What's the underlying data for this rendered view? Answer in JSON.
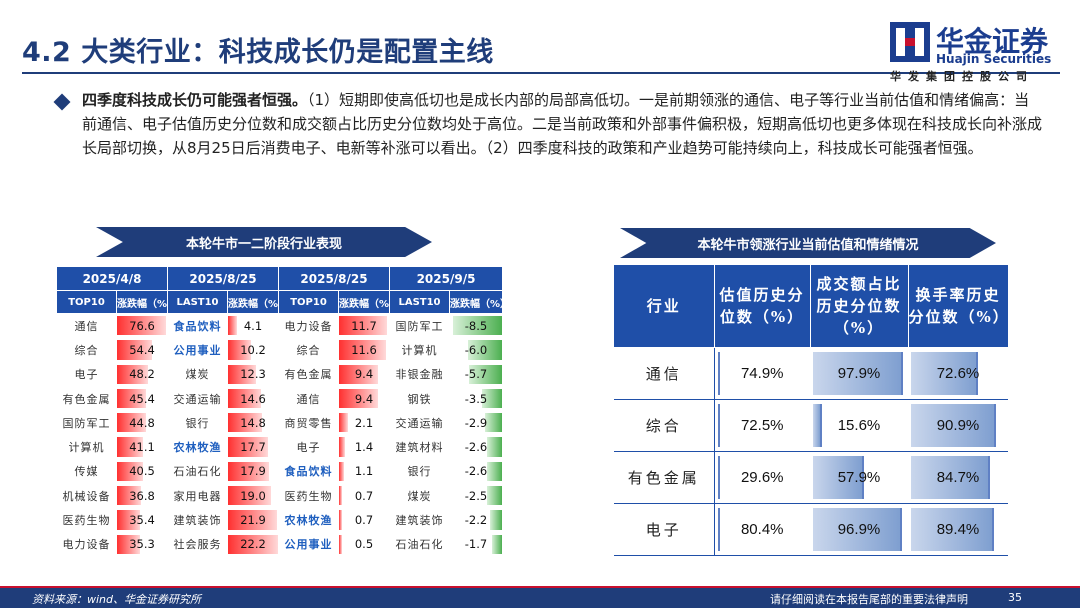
{
  "header": {
    "title": "4.2 大类行业：科技成长仍是配置主线",
    "logo_cn": "华金证券",
    "logo_en": "Huajin Securities",
    "logo_sub": "华发集团控股公司"
  },
  "body": {
    "lead": "四季度科技成长仍可能强者恒强。",
    "text": "（1）短期即使高低切也是成长内部的局部高低切。一是前期领涨的通信、电子等行业当前估值和情绪偏高：当前通信、电子估值历史分位数和成交额占比历史分位数均处于高位。二是当前政策和外部事件偏积极，短期高低切也更多体现在科技成长向补涨成长局部切换，从8月25日后消费电子、电新等补涨可以看出。（2）四季度科技的政策和产业趋势可能持续向上，科技成长可能强者恒强。"
  },
  "left_panel": {
    "banner": "本轮牛市一二阶段行业表现",
    "dates": [
      "2025/4/8",
      "2025/8/25",
      "2025/8/25",
      "2025/9/5"
    ],
    "subheads": [
      "TOP10",
      "涨跌幅（%）",
      "LAST10",
      "涨跌幅（%）",
      "TOP10",
      "涨跌幅（%）",
      "LAST10",
      "涨跌幅（%）"
    ],
    "rows": [
      [
        {
          "n": "通信",
          "v": "76.6",
          "p": 0.97
        },
        {
          "n": "食品饮料",
          "v": "4.1",
          "p": 0.18,
          "b": true
        },
        {
          "n": "电力设备",
          "v": "11.7",
          "p": 0.95
        },
        {
          "n": "国防军工",
          "v": "-8.5",
          "p": 0.95,
          "g": true
        }
      ],
      [
        {
          "n": "综合",
          "v": "54.4",
          "p": 0.7
        },
        {
          "n": "公用事业",
          "v": "10.2",
          "p": 0.46,
          "b": true
        },
        {
          "n": "综合",
          "v": "11.6",
          "p": 0.94
        },
        {
          "n": "计算机",
          "v": "-6.0",
          "p": 0.66,
          "g": true
        }
      ],
      [
        {
          "n": "电子",
          "v": "48.2",
          "p": 0.62
        },
        {
          "n": "煤炭",
          "v": "12.3",
          "p": 0.56
        },
        {
          "n": "有色金属",
          "v": "9.4",
          "p": 0.77
        },
        {
          "n": "非银金融",
          "v": "-5.7",
          "p": 0.63,
          "g": true
        }
      ],
      [
        {
          "n": "有色金属",
          "v": "45.4",
          "p": 0.58
        },
        {
          "n": "交通运输",
          "v": "14.6",
          "p": 0.66
        },
        {
          "n": "通信",
          "v": "9.4",
          "p": 0.77
        },
        {
          "n": "钢铁",
          "v": "-3.5",
          "p": 0.38,
          "g": true
        }
      ],
      [
        {
          "n": "国防军工",
          "v": "44.8",
          "p": 0.57
        },
        {
          "n": "银行",
          "v": "14.8",
          "p": 0.67
        },
        {
          "n": "商贸零售",
          "v": "2.1",
          "p": 0.18
        },
        {
          "n": "交通运输",
          "v": "-2.9",
          "p": 0.32,
          "g": true
        }
      ],
      [
        {
          "n": "计算机",
          "v": "41.1",
          "p": 0.52
        },
        {
          "n": "农林牧渔",
          "v": "17.7",
          "p": 0.8,
          "b": true
        },
        {
          "n": "电子",
          "v": "1.4",
          "p": 0.12
        },
        {
          "n": "建筑材料",
          "v": "-2.6",
          "p": 0.29,
          "g": true
        }
      ],
      [
        {
          "n": "传媒",
          "v": "40.5",
          "p": 0.52
        },
        {
          "n": "石油石化",
          "v": "17.9",
          "p": 0.81
        },
        {
          "n": "食品饮料",
          "v": "1.1",
          "p": 0.1,
          "b": true
        },
        {
          "n": "银行",
          "v": "-2.6",
          "p": 0.29,
          "g": true
        }
      ],
      [
        {
          "n": "机械设备",
          "v": "36.8",
          "p": 0.47
        },
        {
          "n": "家用电器",
          "v": "19.0",
          "p": 0.86
        },
        {
          "n": "医药生物",
          "v": "0.7",
          "p": 0.06
        },
        {
          "n": "煤炭",
          "v": "-2.5",
          "p": 0.28,
          "g": true
        }
      ],
      [
        {
          "n": "医药生物",
          "v": "35.4",
          "p": 0.45
        },
        {
          "n": "建筑装饰",
          "v": "21.9",
          "p": 0.98
        },
        {
          "n": "农林牧渔",
          "v": "0.7",
          "p": 0.06,
          "b": true
        },
        {
          "n": "建筑装饰",
          "v": "-2.2",
          "p": 0.24,
          "g": true
        }
      ],
      [
        {
          "n": "电力设备",
          "v": "35.3",
          "p": 0.45
        },
        {
          "n": "社会服务",
          "v": "22.2",
          "p": 1.0
        },
        {
          "n": "公用事业",
          "v": "0.5",
          "p": 0.05,
          "b": true
        },
        {
          "n": "石油石化",
          "v": "-1.7",
          "p": 0.19,
          "g": true
        }
      ]
    ]
  },
  "right_panel": {
    "banner": "本轮牛市领涨行业当前估值和情绪情况",
    "headers": [
      "行业",
      "估值历史分位数（%）",
      "成交额占比历史分位数（%）",
      "换手率历史分位数（%）"
    ],
    "rows": [
      {
        "name": "通信",
        "v": [
          "74.9%",
          "97.9%",
          "72.6%"
        ],
        "p": [
          0.03,
          0.979,
          0.726
        ]
      },
      {
        "name": "综合",
        "v": [
          "72.5%",
          "15.6%",
          "90.9%"
        ],
        "p": [
          0.02,
          0.156,
          0.909
        ]
      },
      {
        "name": "有色金属",
        "v": [
          "29.6%",
          "57.9%",
          "84.7%"
        ],
        "p": [
          0.01,
          0.579,
          0.847
        ]
      },
      {
        "name": "电子",
        "v": [
          "80.4%",
          "96.9%",
          "89.4%"
        ],
        "p": [
          0.02,
          0.969,
          0.894
        ]
      }
    ]
  },
  "footer": {
    "source": "资料来源：wind、华金证券研究所",
    "notice": "请仔细阅读在本报告尾部的重要法律声明",
    "page": "35"
  }
}
